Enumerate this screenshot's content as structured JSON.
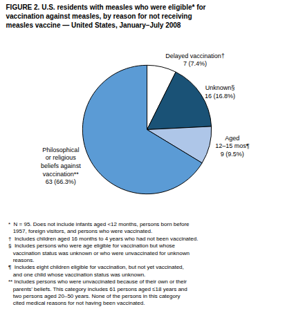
{
  "chart_data": {
    "type": "pie",
    "title": "FIGURE 2. U.S. residents with measles who were eligible* for\nvaccination against measles, by reason for not receiving\nmeasles vaccine — United States, January–July 2008",
    "categories": [
      "Delayed vaccination†\n7 (7.4%)",
      "Unknown§\n16 (16.8%)",
      "Aged\n12–15 mos¶\n9 (9.5%)",
      "Philosophical\nor religious\nbeliefs against\nvaccination**\n63 (66.3%)"
    ],
    "values": [
      7,
      16,
      9,
      63
    ],
    "colors": [
      "#ffffff",
      "#1a5276",
      "#aec6e8",
      "#5b9bd5"
    ],
    "annotations": [
      "*  N = 95. Does not include infants aged <12 months, persons born before\n   1957, foreign visitors, and persons who were vaccinated.",
      "†  Includes children aged 16 months to 4 years who had not been vaccinated.",
      "§  Includes persons who were age eligible for vaccination but whose\n   vaccination status was unknown or who were unvaccinated for unknown\n   reasons.",
      "¶  Includes eight children eligible for vaccination, but not yet vaccinated,\n   and one child whose vaccination status was unknown.",
      "** Includes persons who were unvaccinated because of their own or their\n   parents’ beliefs. This category includes 61 persons aged ≤18 years and\n   two persons aged 20–50 years. None of the persons in this category\n   cited medical reasons for not having been vaccinated."
    ]
  }
}
